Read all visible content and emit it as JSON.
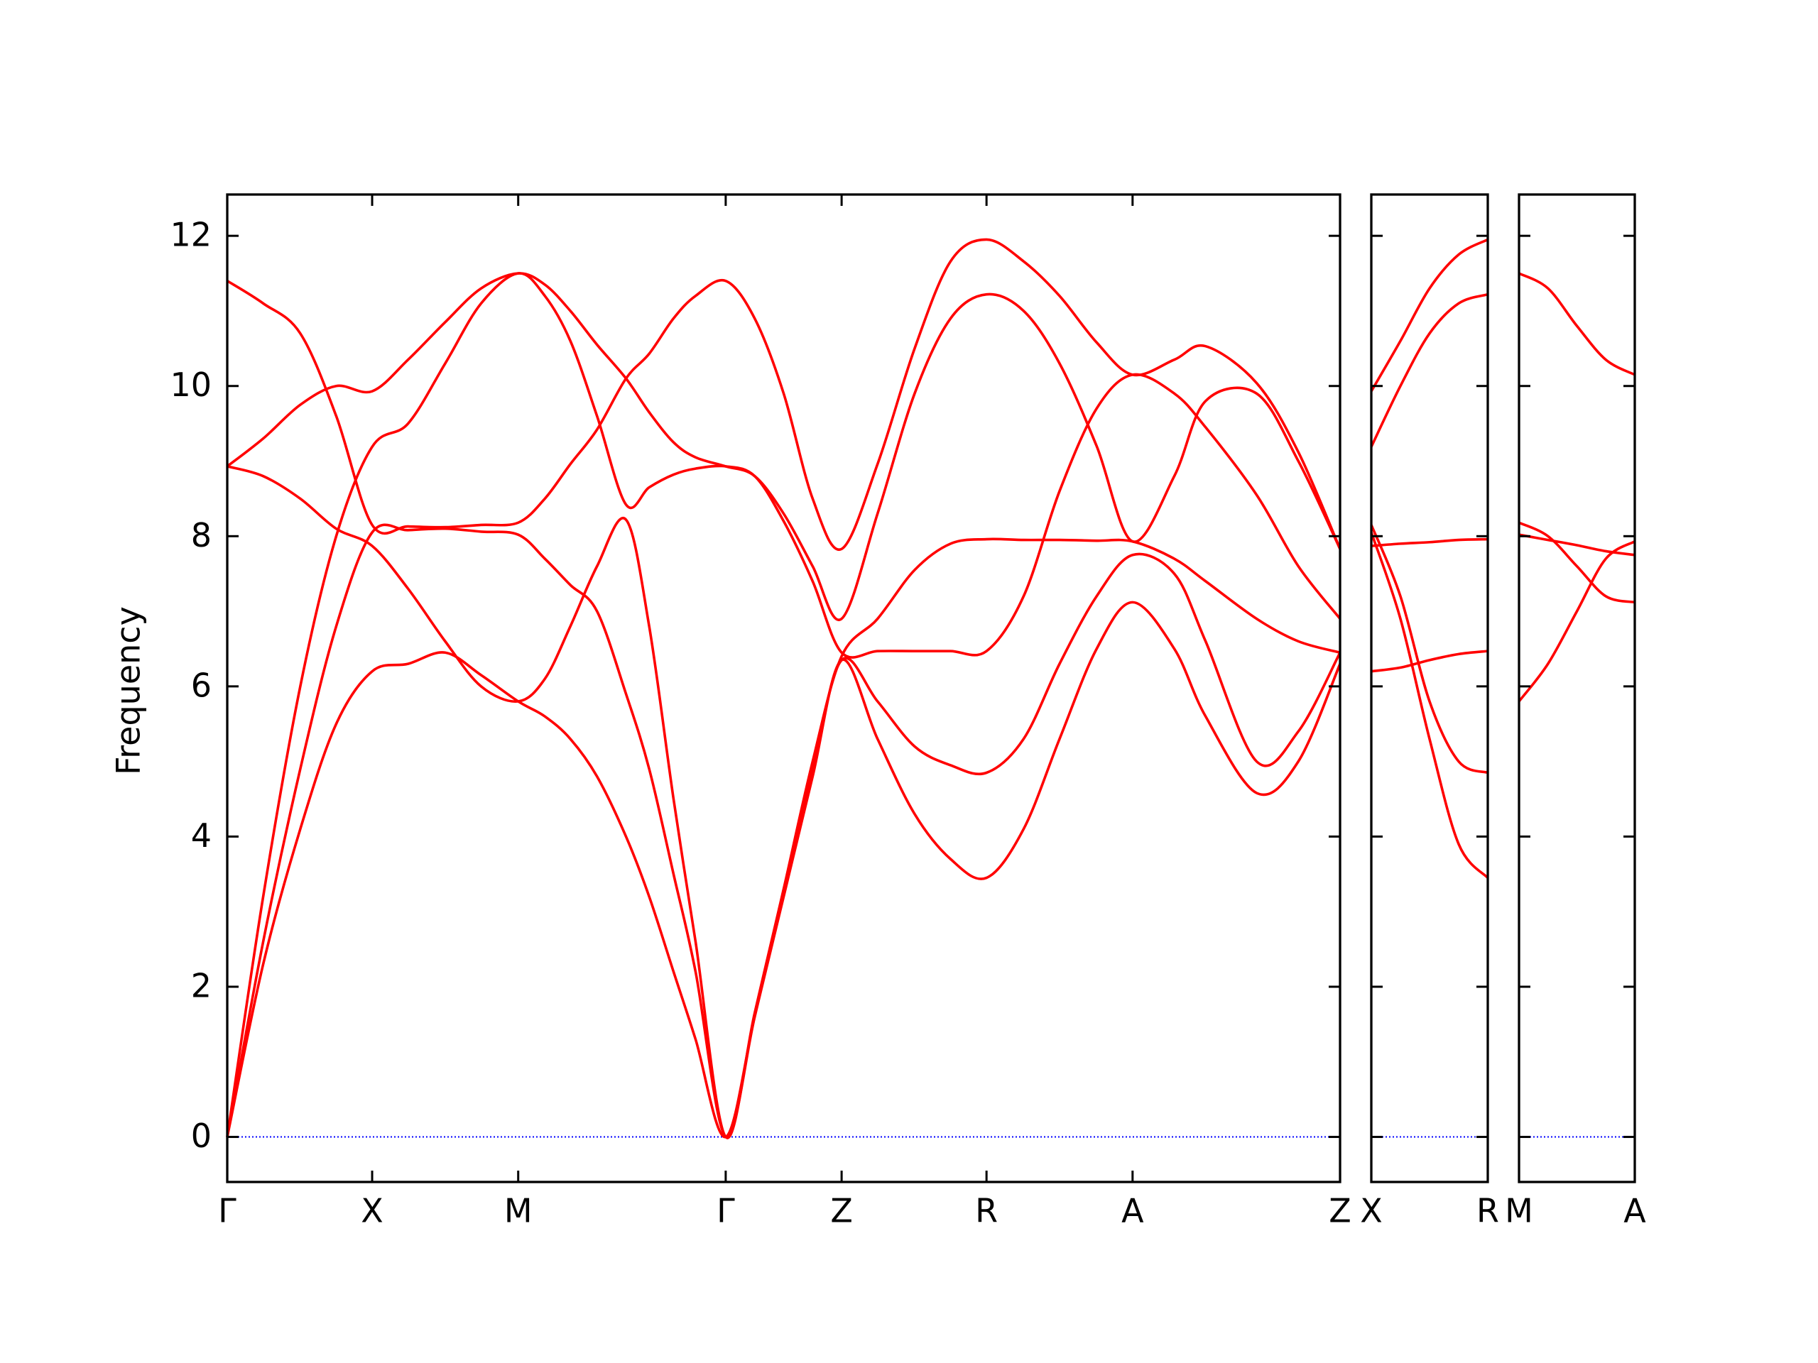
{
  "chart_data": [
    {
      "type": "line",
      "y_label": "Frequency",
      "xlim": [
        0,
        9.6
      ],
      "ylim": [
        -0.6,
        12.55
      ],
      "yticks": [
        0,
        2,
        4,
        6,
        8,
        10,
        12
      ],
      "show_yticklabels": true,
      "xticks": [
        {
          "value": 0,
          "label": "Γ"
        },
        {
          "value": 1.25,
          "label": "X"
        },
        {
          "value": 2.51,
          "label": "M"
        },
        {
          "value": 4.3,
          "label": "Γ"
        },
        {
          "value": 5.3,
          "label": "Z"
        },
        {
          "value": 6.55,
          "label": "R"
        },
        {
          "value": 7.81,
          "label": "A"
        },
        {
          "value": 9.6,
          "label": "Z"
        }
      ],
      "hlines": [
        0
      ],
      "hline_color": "#0000ff",
      "x": [
        0,
        0.31,
        0.63,
        0.94,
        1.25,
        1.56,
        1.88,
        2.19,
        2.51,
        2.74,
        2.96,
        3.19,
        3.44,
        3.64,
        3.85,
        4.04,
        4.3,
        4.55,
        4.8,
        5.05,
        5.3,
        5.61,
        5.93,
        6.24,
        6.55,
        6.87,
        7.18,
        7.5,
        7.81,
        8.17,
        8.44,
        8.88,
        9.24,
        9.6
      ],
      "series": [
        {
          "color": "#ff0000",
          "values": [
            11.4,
            11.1,
            10.7,
            9.6,
            8.15,
            8.13,
            8.12,
            8.15,
            8.18,
            8.5,
            8.96,
            9.42,
            10.1,
            10.43,
            10.9,
            11.2,
            11.4,
            10.9,
            9.9,
            8.5,
            7.83,
            8.96,
            10.5,
            11.66,
            11.95,
            11.66,
            11.2,
            10.58,
            10.15,
            10.35,
            10.53,
            10.04,
            9.12,
            7.83
          ]
        },
        {
          "color": "#ff0000",
          "values": [
            8.93,
            9.3,
            9.75,
            10.0,
            9.93,
            10.35,
            10.85,
            11.3,
            11.5,
            11.35,
            11.0,
            10.55,
            10.1,
            9.65,
            9.25,
            9.05,
            8.93,
            8.8,
            8.3,
            7.6,
            6.9,
            8.3,
            9.9,
            10.9,
            11.22,
            11.0,
            10.3,
            9.2,
            7.93,
            8.8,
            9.8,
            9.9,
            9.0,
            7.83
          ]
        },
        {
          "color": "#ff0000",
          "values": [
            0,
            3.2,
            6.0,
            8.0,
            9.19,
            9.5,
            10.3,
            11.1,
            11.5,
            11.2,
            10.6,
            9.6,
            8.42,
            8.65,
            8.82,
            8.9,
            8.93,
            8.8,
            8.2,
            7.4,
            6.45,
            6.47,
            6.47,
            6.47,
            6.47,
            7.2,
            8.6,
            9.7,
            10.15,
            9.9,
            9.45,
            8.55,
            7.6,
            6.9
          ]
        },
        {
          "color": "#ff0000",
          "values": [
            0,
            2.6,
            4.9,
            6.8,
            8.05,
            8.08,
            8.1,
            8.06,
            8.02,
            7.7,
            7.35,
            7.0,
            5.9,
            4.9,
            3.5,
            2.2,
            0,
            1.6,
            3.3,
            5.0,
            6.4,
            6.9,
            7.55,
            7.9,
            7.96,
            7.95,
            7.95,
            7.94,
            7.93,
            7.7,
            7.4,
            6.9,
            6.6,
            6.45
          ]
        },
        {
          "color": "#ff0000",
          "values": [
            8.93,
            8.8,
            8.5,
            8.1,
            7.87,
            7.3,
            6.6,
            6.0,
            5.8,
            6.1,
            6.8,
            7.6,
            8.22,
            6.8,
            4.5,
            2.6,
            0,
            1.65,
            3.3,
            4.9,
            6.35,
            5.8,
            5.2,
            4.95,
            4.85,
            5.3,
            6.3,
            7.2,
            7.75,
            7.5,
            6.6,
            5.0,
            5.4,
            6.45
          ]
        },
        {
          "color": "#ff0000",
          "values": [
            0,
            2.3,
            4.1,
            5.5,
            6.2,
            6.3,
            6.45,
            6.15,
            5.8,
            5.6,
            5.3,
            4.8,
            4.0,
            3.2,
            2.2,
            1.3,
            0,
            1.6,
            3.2,
            4.8,
            6.35,
            5.3,
            4.3,
            3.7,
            3.45,
            4.1,
            5.3,
            6.5,
            7.12,
            6.5,
            5.6,
            4.58,
            5.0,
            6.3
          ]
        }
      ]
    },
    {
      "type": "line",
      "xlim": [
        0,
        1
      ],
      "ylim": [
        -0.6,
        12.55
      ],
      "yticks": [
        0,
        2,
        4,
        6,
        8,
        10,
        12
      ],
      "show_yticklabels": false,
      "xticks": [
        {
          "value": 0,
          "label": "X"
        },
        {
          "value": 1,
          "label": "R"
        }
      ],
      "hlines": [
        0
      ],
      "hline_color": "#0000ff",
      "x": [
        0,
        0.25,
        0.5,
        0.75,
        1
      ],
      "series": [
        {
          "color": "#ff0000",
          "values": [
            9.93,
            10.6,
            11.3,
            11.75,
            11.95
          ]
        },
        {
          "color": "#ff0000",
          "values": [
            9.19,
            10.0,
            10.7,
            11.1,
            11.22
          ]
        },
        {
          "color": "#ff0000",
          "values": [
            7.87,
            7.9,
            7.92,
            7.95,
            7.96
          ]
        },
        {
          "color": "#ff0000",
          "values": [
            6.2,
            6.25,
            6.35,
            6.43,
            6.47
          ]
        },
        {
          "color": "#ff0000",
          "values": [
            8.15,
            7.2,
            5.8,
            5.0,
            4.85
          ]
        },
        {
          "color": "#ff0000",
          "values": [
            8.05,
            6.9,
            5.3,
            3.9,
            3.45
          ]
        }
      ]
    },
    {
      "type": "line",
      "xlim": [
        0,
        1
      ],
      "ylim": [
        -0.6,
        12.55
      ],
      "yticks": [
        0,
        2,
        4,
        6,
        8,
        10,
        12
      ],
      "show_yticklabels": false,
      "xticks": [
        {
          "value": 0,
          "label": "M"
        },
        {
          "value": 1,
          "label": "A"
        }
      ],
      "hlines": [
        0
      ],
      "hline_color": "#0000ff",
      "x": [
        0,
        0.25,
        0.5,
        0.75,
        1
      ],
      "series": [
        {
          "color": "#ff0000",
          "values": [
            11.5,
            11.3,
            10.8,
            10.35,
            10.15
          ]
        },
        {
          "color": "#ff0000",
          "values": [
            8.18,
            8.0,
            7.6,
            7.2,
            7.12
          ]
        },
        {
          "color": "#ff0000",
          "values": [
            8.02,
            7.95,
            7.88,
            7.8,
            7.75
          ]
        },
        {
          "color": "#ff0000",
          "values": [
            5.8,
            6.3,
            7.0,
            7.7,
            7.93
          ]
        }
      ]
    }
  ]
}
